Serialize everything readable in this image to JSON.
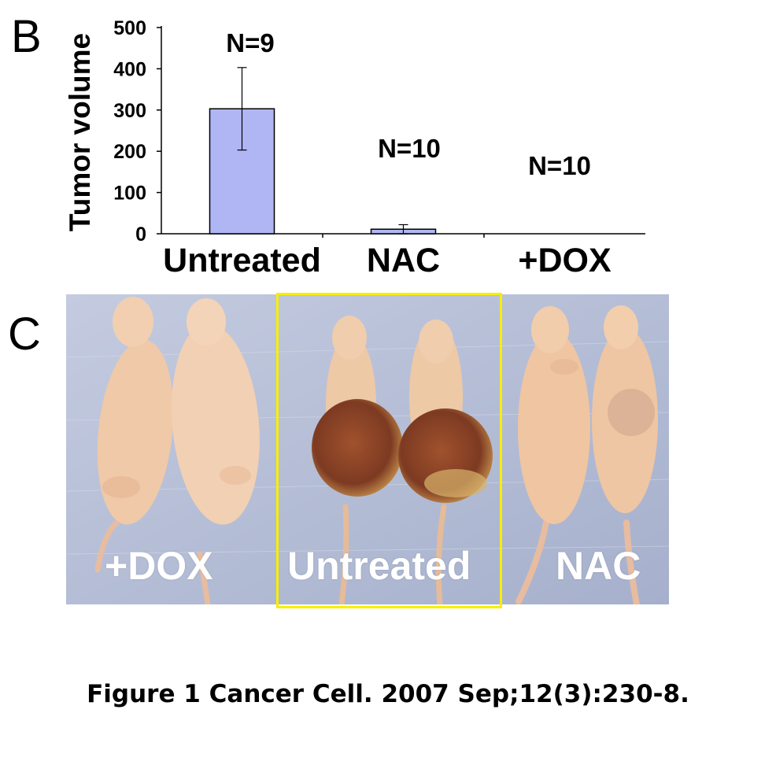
{
  "panels": {
    "b": "B",
    "c": "C"
  },
  "chart_data": {
    "type": "bar",
    "title": "",
    "xlabel": "",
    "ylabel": "Tumor volume",
    "categories": [
      "Untreated",
      "NAC",
      "+DOX"
    ],
    "values": [
      303,
      11,
      0
    ],
    "errors": [
      100,
      11,
      0
    ],
    "n_labels": [
      "N=9",
      "N=10",
      "N=10"
    ],
    "yticks": [
      0,
      100,
      200,
      300,
      400,
      500
    ],
    "ylim": [
      0,
      500
    ],
    "grid": false,
    "bar_color": "#b0b6f4",
    "bar_edge_color": "#000000"
  },
  "photo": {
    "labels": [
      "+DOX",
      "Untreated",
      "NAC"
    ],
    "highlighted_group": "Untreated",
    "highlight_color": "#f7ef00",
    "background_color": "#b9c1d8"
  },
  "caption": "Figure 1 Cancer Cell. 2007 Sep;12(3):230-8."
}
